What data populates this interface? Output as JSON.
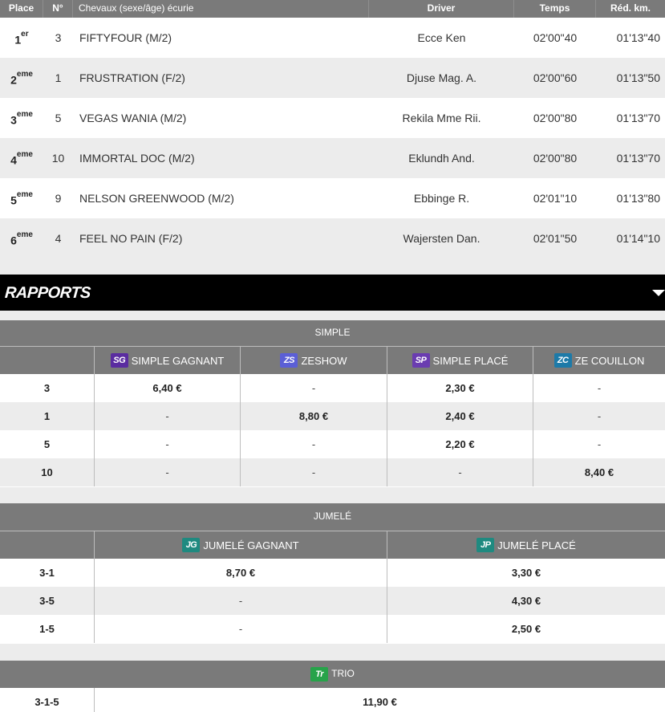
{
  "results": {
    "headers": {
      "place": "Place",
      "num": "N°",
      "horse": "Chevaux (sexe/âge) écurie",
      "driver": "Driver",
      "time": "Temps",
      "red": "Réd. km."
    },
    "rows": [
      {
        "place": "1",
        "suffix": "er",
        "num": "3",
        "horse": "FIFTYFOUR (M/2)",
        "driver": "Ecce Ken",
        "time": "02'00\"40",
        "red": "01'13\"40"
      },
      {
        "place": "2",
        "suffix": "eme",
        "num": "1",
        "horse": "FRUSTRATION (F/2)",
        "driver": "Djuse Mag. A.",
        "time": "02'00\"60",
        "red": "01'13\"50"
      },
      {
        "place": "3",
        "suffix": "eme",
        "num": "5",
        "horse": "VEGAS WANIA (M/2)",
        "driver": "Rekila Mme Rii.",
        "time": "02'00\"80",
        "red": "01'13\"70"
      },
      {
        "place": "4",
        "suffix": "eme",
        "num": "10",
        "horse": "IMMORTAL DOC (M/2)",
        "driver": "Eklundh And.",
        "time": "02'00\"80",
        "red": "01'13\"70"
      },
      {
        "place": "5",
        "suffix": "eme",
        "num": "9",
        "horse": "NELSON GREENWOOD (M/2)",
        "driver": "Ebbinge R.",
        "time": "02'01\"10",
        "red": "01'13\"80"
      },
      {
        "place": "6",
        "suffix": "eme",
        "num": "4",
        "horse": "FEEL NO PAIN (F/2)",
        "driver": "Wajersten Dan.",
        "time": "02'01\"50",
        "red": "01'14\"10"
      }
    ]
  },
  "rapports": {
    "title": "RAPPORTS"
  },
  "simple": {
    "title": "SIMPLE",
    "columns": [
      {
        "badge": "SG",
        "label": "SIMPLE GAGNANT"
      },
      {
        "badge": "ZS",
        "label": "ZESHOW"
      },
      {
        "badge": "SP",
        "label": "SIMPLE PLACÉ"
      },
      {
        "badge": "ZC",
        "label": "ZE COUILLON"
      }
    ],
    "rows": [
      {
        "combo": "3",
        "values": [
          "6,40 €",
          "-",
          "2,30 €",
          "-"
        ]
      },
      {
        "combo": "1",
        "values": [
          "-",
          "8,80 €",
          "2,40 €",
          "-"
        ]
      },
      {
        "combo": "5",
        "values": [
          "-",
          "-",
          "2,20 €",
          "-"
        ]
      },
      {
        "combo": "10",
        "values": [
          "-",
          "-",
          "-",
          "8,40 €"
        ]
      }
    ]
  },
  "jumele": {
    "title": "JUMELÉ",
    "columns": [
      {
        "badge": "JG",
        "label": "JUMELÉ GAGNANT"
      },
      {
        "badge": "JP",
        "label": "JUMELÉ PLACÉ"
      }
    ],
    "rows": [
      {
        "combo": "3-1",
        "values": [
          "8,70 €",
          "3,30 €"
        ]
      },
      {
        "combo": "3-5",
        "values": [
          "-",
          "4,30 €"
        ]
      },
      {
        "combo": "1-5",
        "values": [
          "-",
          "2,50 €"
        ]
      }
    ]
  },
  "trio": {
    "badge": "Tr",
    "title": "TRIO",
    "rows": [
      {
        "combo": "3-1-5",
        "value": "11,90 €"
      }
    ]
  }
}
